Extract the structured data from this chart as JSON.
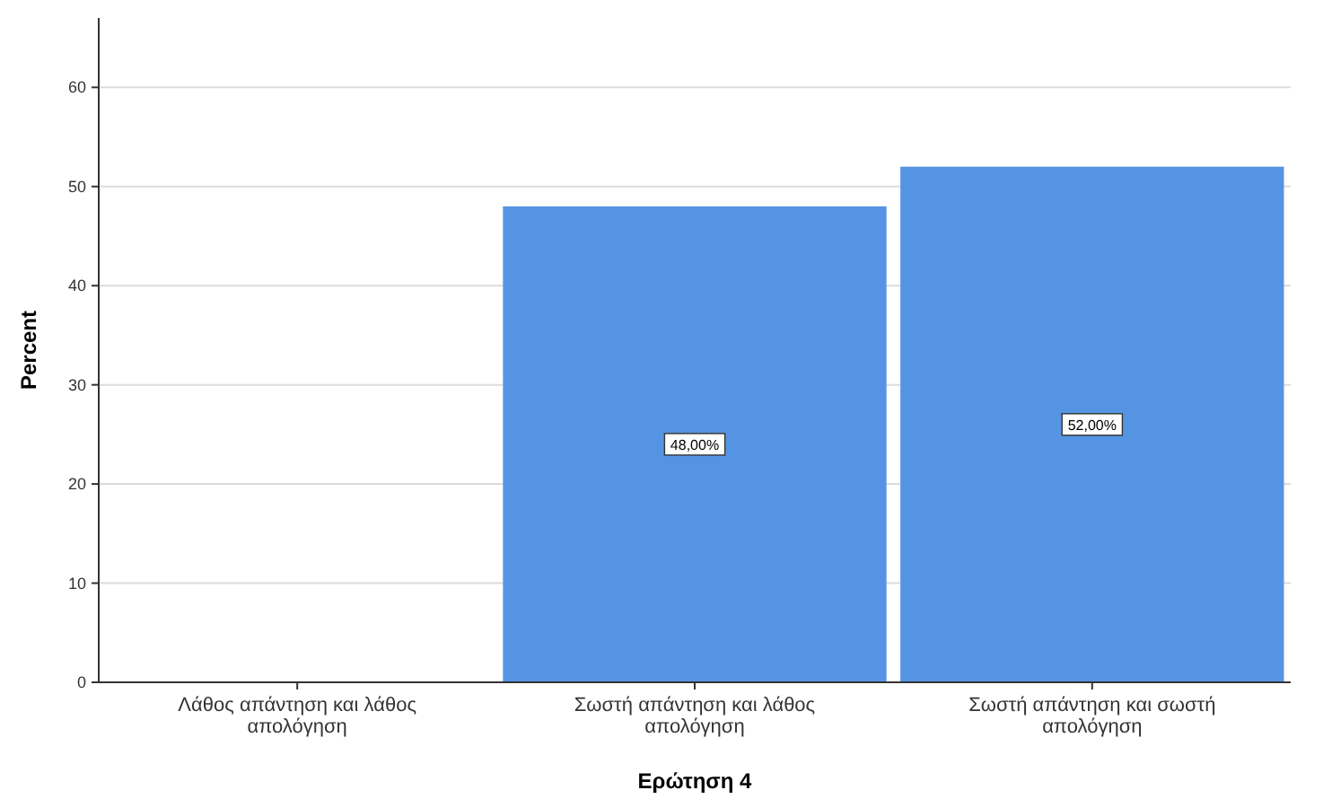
{
  "chart_data": {
    "type": "bar",
    "xlabel": "Ερώτηση 4",
    "ylabel": "Percent",
    "categories": [
      "Λάθος απάντηση και λάθος απολόγηση",
      "Σωστή απάντηση και λάθος απολόγηση",
      "Σωστή απάντηση και σωστή απολόγηση"
    ],
    "values": [
      0,
      48,
      52
    ],
    "value_labels": [
      null,
      "48,00%",
      "52,00%"
    ],
    "color": "#5594e3",
    "ylim": [
      0,
      67
    ],
    "yticks": [
      0,
      10,
      20,
      30,
      40,
      50,
      60
    ],
    "grid": "y"
  }
}
